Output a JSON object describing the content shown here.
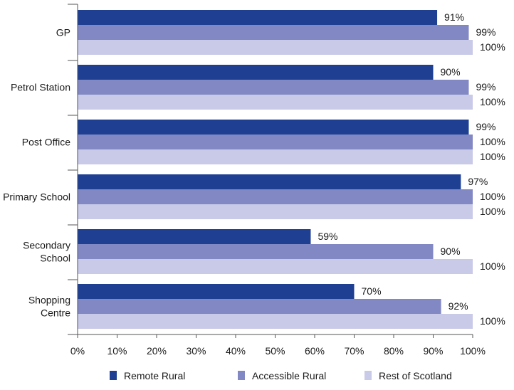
{
  "chart_data": {
    "type": "bar",
    "orientation": "horizontal",
    "categories": [
      "GP",
      "Petrol Station",
      "Post Office",
      "Primary School",
      "Secondary School",
      "Shopping Centre"
    ],
    "category_label_lines": [
      [
        "GP"
      ],
      [
        "Petrol Station"
      ],
      [
        "Post Office"
      ],
      [
        "Primary School"
      ],
      [
        "Secondary",
        "School"
      ],
      [
        "Shopping",
        "Centre"
      ]
    ],
    "series": [
      {
        "name": "Remote Rural",
        "color": "#1f3f93",
        "values": [
          91,
          90,
          99,
          97,
          59,
          70
        ],
        "labels": [
          "91%",
          "90%",
          "99%",
          "97%",
          "59%",
          "70%"
        ]
      },
      {
        "name": "Accessible Rural",
        "color": "#8288c4",
        "values": [
          99,
          99,
          100,
          100,
          90,
          92
        ],
        "labels": [
          "99%",
          "99%",
          "100%",
          "100%",
          "90%",
          "92%"
        ]
      },
      {
        "name": "Rest of Scotland",
        "color": "#c9cae8",
        "values": [
          100,
          100,
          100,
          100,
          100,
          100
        ],
        "labels": [
          "100%",
          "100%",
          "100%",
          "100%",
          "100%",
          "100%"
        ]
      }
    ],
    "x_ticks": [
      0,
      10,
      20,
      30,
      40,
      50,
      60,
      70,
      80,
      90,
      100
    ],
    "x_tick_labels": [
      "0%",
      "10%",
      "20%",
      "30%",
      "40%",
      "50%",
      "60%",
      "70%",
      "80%",
      "90%",
      "100%"
    ],
    "xlim": [
      0,
      100
    ],
    "title": "",
    "xlabel": "",
    "ylabel": "",
    "grid": false,
    "legend_position": "bottom"
  }
}
